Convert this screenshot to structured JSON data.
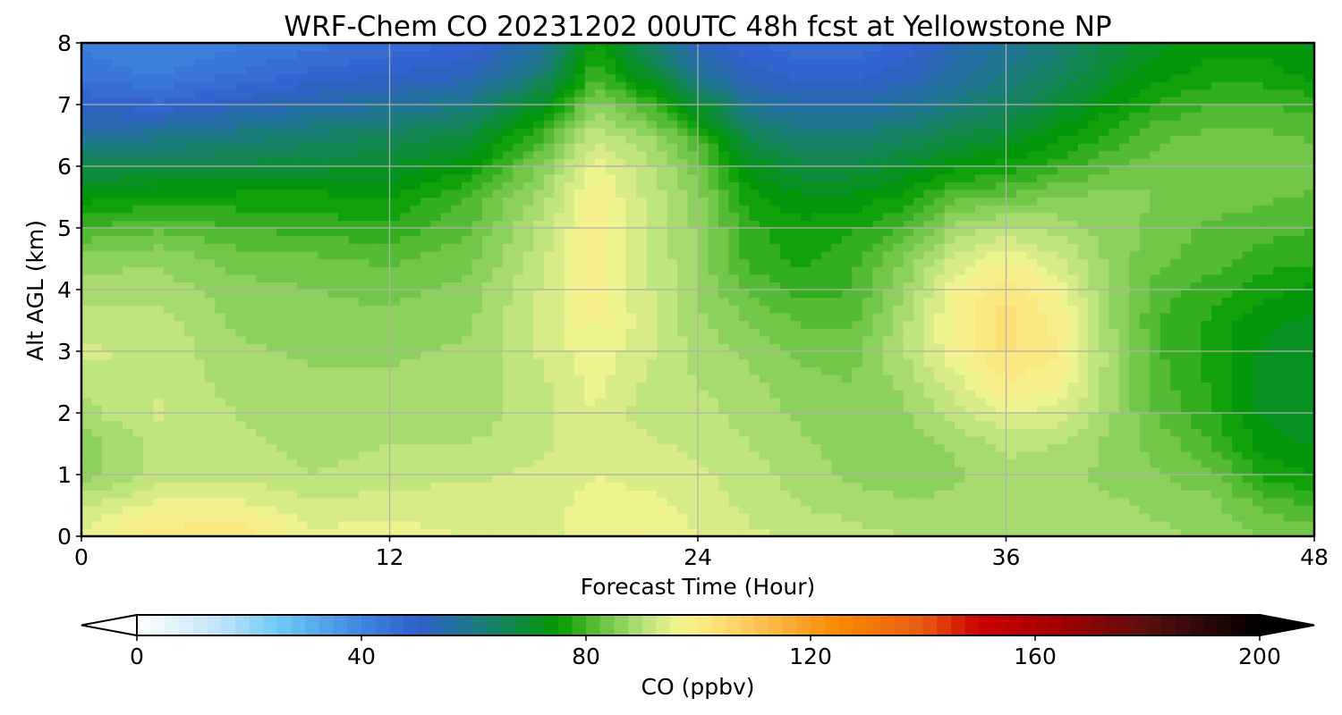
{
  "chart_data": {
    "type": "heatmap",
    "title": "WRF-Chem CO  20231202 00UTC 48h fcst at Yellowstone NP",
    "xlabel": "Forecast Time (Hour)",
    "ylabel": "Alt AGL (km)",
    "xlim": [
      0,
      48
    ],
    "ylim": [
      0,
      8
    ],
    "x_ticks": [
      "0",
      "12",
      "24",
      "36",
      "48"
    ],
    "y_ticks": [
      "0",
      "1",
      "2",
      "3",
      "4",
      "5",
      "6",
      "7",
      "8"
    ],
    "grid": true,
    "field": {
      "x": [
        0,
        3,
        6,
        9,
        12,
        15,
        18,
        20,
        22,
        24,
        26,
        28,
        30,
        32,
        34,
        36,
        38,
        40,
        42,
        44,
        46,
        48
      ],
      "y": [
        0,
        0.5,
        1,
        1.5,
        2,
        2.5,
        3,
        3.5,
        4,
        4.5,
        5,
        5.5,
        6,
        6.5,
        7,
        7.5,
        8
      ],
      "values_ppbv": [
        [
          96,
          102,
          103,
          96,
          96,
          95,
          94,
          96,
          98,
          95,
          93,
          92,
          91,
          90,
          90,
          90,
          89,
          89,
          88,
          87,
          85,
          84
        ],
        [
          92,
          96,
          96,
          93,
          94,
          94,
          94,
          96,
          96,
          94,
          92,
          90,
          89,
          88,
          88,
          89,
          88,
          88,
          87,
          86,
          82,
          80
        ],
        [
          86,
          91,
          92,
          90,
          91,
          92,
          93,
          95,
          94,
          93,
          91,
          89,
          87,
          86,
          87,
          89,
          88,
          87,
          85,
          83,
          77,
          75
        ],
        [
          86,
          91,
          91,
          89,
          90,
          90,
          92,
          95,
          93,
          92,
          90,
          88,
          86,
          86,
          88,
          91,
          90,
          87,
          84,
          80,
          74,
          72
        ],
        [
          89,
          93,
          90,
          88,
          89,
          88,
          92,
          95,
          91,
          91,
          89,
          87,
          86,
          87,
          91,
          95,
          94,
          88,
          82,
          78,
          72,
          70
        ],
        [
          91,
          92,
          89,
          88,
          88,
          88,
          92,
          96,
          92,
          90,
          88,
          86,
          85,
          88,
          94,
          100,
          98,
          89,
          81,
          77,
          71,
          70
        ],
        [
          93,
          92,
          88,
          87,
          87,
          88,
          93,
          97,
          93,
          89,
          87,
          84,
          84,
          90,
          97,
          103,
          100,
          89,
          80,
          77,
          72,
          71
        ],
        [
          91,
          91,
          87,
          86,
          86,
          87,
          93,
          98,
          94,
          88,
          85,
          82,
          82,
          89,
          98,
          104,
          99,
          88,
          80,
          77,
          73,
          72
        ],
        [
          89,
          89,
          86,
          85,
          84,
          86,
          93,
          98,
          93,
          87,
          82,
          79,
          80,
          87,
          97,
          102,
          97,
          87,
          81,
          79,
          76,
          74
        ],
        [
          86,
          87,
          84,
          83,
          82,
          84,
          92,
          99,
          93,
          87,
          79,
          77,
          79,
          85,
          93,
          97,
          93,
          87,
          83,
          81,
          79,
          78
        ],
        [
          80,
          82,
          80,
          79,
          78,
          82,
          91,
          99,
          92,
          87,
          78,
          76,
          77,
          80,
          88,
          91,
          89,
          86,
          84,
          82,
          81,
          80
        ],
        [
          74,
          76,
          76,
          76,
          75,
          80,
          89,
          98,
          92,
          86,
          76,
          73,
          73,
          76,
          82,
          83,
          85,
          86,
          85,
          84,
          83,
          82
        ],
        [
          67,
          67,
          68,
          69,
          70,
          74,
          86,
          96,
          91,
          84,
          72,
          68,
          68,
          70,
          74,
          76,
          79,
          82,
          84,
          85,
          85,
          84
        ],
        [
          58,
          59,
          61,
          63,
          65,
          68,
          80,
          92,
          88,
          80,
          66,
          62,
          62,
          64,
          67,
          70,
          74,
          78,
          82,
          83,
          83,
          82
        ],
        [
          50,
          48,
          52,
          55,
          57,
          60,
          72,
          86,
          80,
          70,
          58,
          55,
          55,
          57,
          61,
          64,
          69,
          74,
          78,
          80,
          80,
          79
        ],
        [
          44,
          42,
          45,
          48,
          50,
          52,
          62,
          80,
          70,
          58,
          51,
          49,
          49,
          51,
          56,
          60,
          64,
          70,
          74,
          76,
          76,
          74
        ],
        [
          42,
          40,
          42,
          44,
          46,
          48,
          56,
          76,
          64,
          52,
          48,
          46,
          46,
          48,
          54,
          58,
          62,
          68,
          72,
          74,
          74,
          72
        ]
      ]
    },
    "colorbar": {
      "label": "CO  (ppbv)",
      "min": 0,
      "max": 200,
      "step": 2.5,
      "ticks": [
        "0",
        "40",
        "80",
        "120",
        "160",
        "200"
      ],
      "extend": "both",
      "stops": [
        [
          0,
          "#ffffff"
        ],
        [
          15,
          "#bfe4f8"
        ],
        [
          25,
          "#6ecbf5"
        ],
        [
          40,
          "#3f86e0"
        ],
        [
          50,
          "#3060cc"
        ],
        [
          60,
          "#1f7a88"
        ],
        [
          75,
          "#009a00"
        ],
        [
          82,
          "#5fbf3a"
        ],
        [
          90,
          "#b4e07a"
        ],
        [
          97,
          "#f5f590"
        ],
        [
          103,
          "#fde27a"
        ],
        [
          115,
          "#fcb13c"
        ],
        [
          125,
          "#f98a00"
        ],
        [
          140,
          "#e85a12"
        ],
        [
          150,
          "#cc0000"
        ],
        [
          165,
          "#a00000"
        ],
        [
          180,
          "#5a1010"
        ],
        [
          200,
          "#000000"
        ]
      ]
    }
  }
}
